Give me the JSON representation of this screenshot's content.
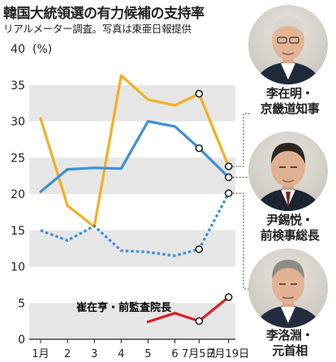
{
  "header": {
    "title": "韓国大統領選の有力候補の支持率",
    "subtitle": "リアルメーター調査。写真は東亜日報提供"
  },
  "candidates": [
    {
      "id": "lee_jae_myung",
      "name_line1": "李在明・",
      "name_line2": "京畿道知事",
      "line_style": "solid",
      "color": "#f0b020"
    },
    {
      "id": "yoon_suk_yeol",
      "name_line1": "尹錫悦・",
      "name_line2": "前検事総長",
      "line_style": "solid",
      "color": "#3d8fd6"
    },
    {
      "id": "lee_nak_yon",
      "name_line1": "李洛淵・",
      "name_line2": "元首相",
      "line_style": "dotted",
      "color": "#3d8fd6"
    }
  ],
  "annotation": {
    "label": "崔在亨・前監査院長",
    "color": "#d8202a"
  },
  "chart_data": {
    "type": "line",
    "title": "韓国大統領選の有力候補の支持率",
    "subtitle": "リアルメーター調査。写真は東亜日報提供",
    "ylabel": "(%)",
    "categories": [
      "1月",
      "2",
      "3",
      "4",
      "5",
      "6",
      "7月5日",
      "7月19日"
    ],
    "ylim": [
      0,
      40
    ],
    "yticks": [
      0,
      5,
      10,
      15,
      20,
      25,
      30,
      35,
      40
    ],
    "grid": "horizontal bands",
    "series": [
      {
        "name": "李在明・京畿道知事",
        "color": "#f0b020",
        "dash": "solid",
        "points": [
          [
            0,
            30.4
          ],
          [
            1,
            18.4
          ],
          [
            2,
            15.5
          ],
          [
            3,
            36.3
          ],
          [
            4,
            33.0
          ],
          [
            5,
            32.2
          ],
          [
            5.9,
            33.8
          ],
          [
            7,
            23.8
          ]
        ]
      },
      {
        "name": "尹錫悦・前検事総長",
        "color": "#3d8fd6",
        "dash": "solid",
        "points": [
          [
            0,
            20.3
          ],
          [
            1,
            23.4
          ],
          [
            2,
            23.6
          ],
          [
            3,
            23.5
          ],
          [
            4,
            30.0
          ],
          [
            5,
            29.3
          ],
          [
            5.9,
            26.3
          ],
          [
            7,
            22.3
          ]
        ]
      },
      {
        "name": "李洛淵・元首相",
        "color": "#3d8fd6",
        "dash": "dotted",
        "points": [
          [
            0,
            15.0
          ],
          [
            1,
            13.6
          ],
          [
            2,
            15.6
          ],
          [
            3,
            12.2
          ],
          [
            4,
            12.0
          ],
          [
            5,
            11.5
          ],
          [
            5.9,
            12.4
          ],
          [
            7,
            20.1
          ]
        ]
      },
      {
        "name": "崔在亨・前監査院長",
        "color": "#d8202a",
        "dash": "solid",
        "points": [
          [
            4,
            2.4
          ],
          [
            5,
            3.6
          ],
          [
            5.9,
            2.5
          ],
          [
            7,
            5.8
          ]
        ]
      }
    ],
    "markers": [
      {
        "series": 0,
        "x": 5.9,
        "y": 33.8
      },
      {
        "series": 0,
        "x": 7,
        "y": 23.8
      },
      {
        "series": 1,
        "x": 5.9,
        "y": 26.3
      },
      {
        "series": 1,
        "x": 7,
        "y": 22.3
      },
      {
        "series": 2,
        "x": 5.9,
        "y": 12.4
      },
      {
        "series": 2,
        "x": 7,
        "y": 20.1
      },
      {
        "series": 3,
        "x": 5.9,
        "y": 2.5
      },
      {
        "series": 3,
        "x": 7,
        "y": 5.8
      }
    ]
  }
}
